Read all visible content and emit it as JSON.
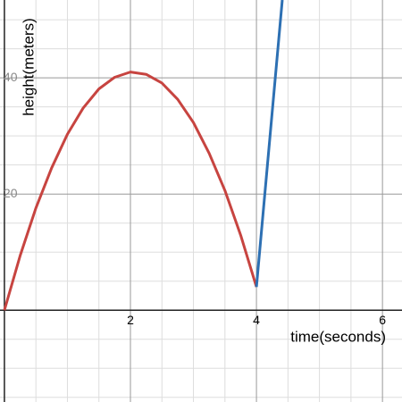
{
  "chart_data": {
    "type": "line",
    "x_label": "time(seconds)",
    "y_label": "height(meters)",
    "series": [
      {
        "color": "#c74440",
        "x": [
          0,
          0.25,
          0.5,
          0.75,
          1,
          1.25,
          1.5,
          1.75,
          2,
          2.25,
          2.5,
          2.75,
          3,
          3.25,
          3.5,
          3.75,
          4
        ],
        "values": [
          0,
          9.4,
          17.6,
          24.5,
          30.3,
          34.8,
          38.1,
          40.1,
          41,
          40.6,
          39.1,
          36.3,
          32.3,
          27.0,
          20.6,
          12.9,
          4
        ]
      },
      {
        "color": "#2d70b3",
        "x": [
          4,
          4.41
        ],
        "values": [
          4,
          53.4
        ]
      }
    ],
    "xlim": [
      -0.07,
      6.31
    ],
    "ylim": [
      -15.8,
      53.4
    ],
    "xticks": [
      2,
      4,
      6
    ],
    "yticks": [
      20,
      40
    ],
    "minor_xticks": [
      0.5,
      1,
      1.5,
      2.5,
      3,
      3.5,
      4.5,
      5,
      5.5,
      6.5
    ],
    "minor_yticks": [
      -15,
      -10,
      -5,
      5,
      10,
      15,
      25,
      30,
      35,
      45,
      50
    ],
    "grid": true
  }
}
